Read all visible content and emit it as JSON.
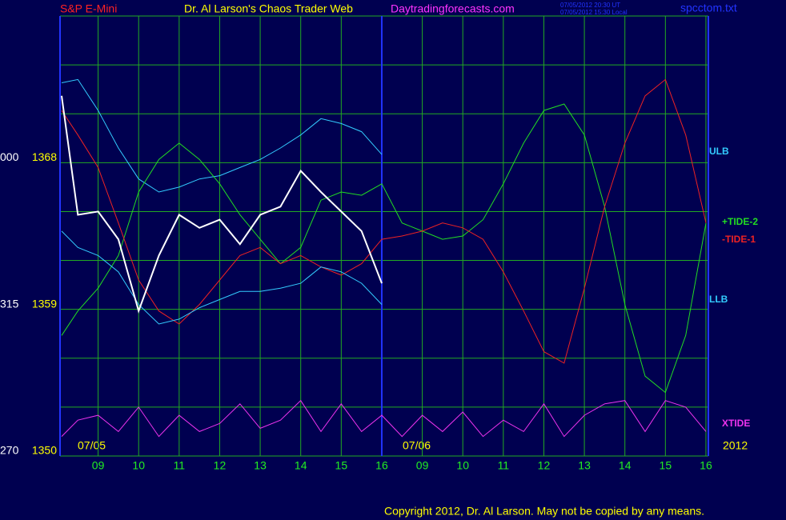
{
  "chart_data": {
    "type": "line",
    "title": "Dr. Al Larson's Chaos Trader Web",
    "symbol": "S&P E-Mini",
    "site": "Daytradingforecasts.com",
    "timestamps": [
      "07/05/2012 20:30 UT",
      "07/05/2012 15:30 Local"
    ],
    "file": "spcctom.txt",
    "date_labels": [
      "07/05",
      "07/06",
      "2012"
    ],
    "copyright": "Copyright 2012, Dr. Al Larson. May not be copied by any means.",
    "angle_labels": [
      {
        "value": 1350,
        "label": "270"
      },
      {
        "value": 1359,
        "label": "315"
      },
      {
        "value": 1368,
        "label": "000"
      }
    ],
    "xlim": [
      8.06,
      24.06
    ],
    "xticks": [
      {
        "value": 9,
        "label": "09"
      },
      10,
      11,
      12,
      13,
      14,
      15,
      16,
      {
        "value": 17,
        "label": "09"
      },
      {
        "value": 18,
        "label": "10"
      },
      {
        "value": 19,
        "label": "11"
      },
      {
        "value": 20,
        "label": "12"
      },
      {
        "value": 21,
        "label": "13"
      },
      {
        "value": 22,
        "label": "14"
      },
      {
        "value": 23,
        "label": "15"
      },
      {
        "value": 24,
        "label": "16"
      }
    ],
    "ylim": [
      1350,
      1377
    ],
    "yticks": [
      1350,
      1359,
      1368
    ],
    "ygrid": [
      1350,
      1353,
      1356,
      1359,
      1362,
      1365,
      1368,
      1371,
      1374,
      1377
    ],
    "day_separator": 16,
    "x": [
      8.1,
      8.5,
      9,
      9.5,
      10,
      10.5,
      11,
      11.5,
      12,
      12.5,
      13,
      13.5,
      14,
      14.5,
      15,
      15.5,
      16,
      16.5,
      17,
      17.5,
      18,
      18.5,
      19,
      19.5,
      20,
      20.5,
      21,
      21.5,
      22,
      22.5,
      23,
      23.5,
      24
    ],
    "series": [
      {
        "name": "ULB",
        "color": "#33ccff",
        "values": [
          1372.9,
          1373.1,
          1371.2,
          1368.9,
          1367.0,
          1366.2,
          1366.5,
          1367.0,
          1367.2,
          1367.7,
          1368.2,
          1368.9,
          1369.7,
          1370.7,
          1370.4,
          1369.9,
          1368.5,
          null,
          null,
          null,
          null,
          null,
          null,
          null,
          null,
          null,
          null,
          null,
          null,
          null,
          null,
          null,
          null
        ]
      },
      {
        "name": "+TIDE-2",
        "color": "#22dd22",
        "values": [
          1357.4,
          1358.9,
          1360.3,
          1362.3,
          1366.2,
          1368.2,
          1369.2,
          1368.2,
          1366.7,
          1364.8,
          1363.3,
          1361.8,
          1362.8,
          1365.7,
          1366.2,
          1366.0,
          1366.7,
          1364.3,
          1363.8,
          1363.3,
          1363.5,
          1364.5,
          1366.7,
          1369.2,
          1371.2,
          1371.6,
          1369.7,
          1365.3,
          1359.3,
          1354.9,
          1353.9,
          1357.4,
          1364.3
        ]
      },
      {
        "name": "-TIDE-1",
        "color": "#ee2222",
        "values": [
          1371.2,
          1369.7,
          1367.7,
          1364.3,
          1360.8,
          1358.9,
          1358.1,
          1359.3,
          1360.8,
          1362.3,
          1362.8,
          1361.8,
          1362.3,
          1361.6,
          1361.1,
          1361.8,
          1363.3,
          1363.5,
          1363.8,
          1364.3,
          1364.0,
          1363.3,
          1361.3,
          1358.9,
          1356.4,
          1355.7,
          1360.3,
          1365.3,
          1369.2,
          1372.1,
          1373.1,
          1369.7,
          1364.3
        ]
      },
      {
        "name": "LLB",
        "color": "#33ccff",
        "values": [
          1363.8,
          1362.8,
          1362.3,
          1361.3,
          1359.3,
          1358.1,
          1358.4,
          1359.1,
          1359.6,
          1360.1,
          1360.1,
          1360.3,
          1360.6,
          1361.6,
          1361.3,
          1360.6,
          1359.3,
          null,
          null,
          null,
          null,
          null,
          null,
          null,
          null,
          null,
          null,
          null,
          null,
          null,
          null,
          null,
          null
        ]
      },
      {
        "name": "XTIDE",
        "color": "#ee33ee",
        "values": [
          1351.2,
          1352.2,
          1352.5,
          1351.5,
          1353.0,
          1351.2,
          1352.5,
          1351.5,
          1352.0,
          1353.2,
          1351.7,
          1352.2,
          1353.4,
          1351.5,
          1353.2,
          1351.5,
          1352.5,
          1351.2,
          1352.5,
          1351.5,
          1352.7,
          1351.2,
          1352.2,
          1351.5,
          1353.2,
          1351.2,
          1352.5,
          1353.2,
          1353.4,
          1351.5,
          1353.4,
          1353.0,
          1351.5
        ]
      }
    ],
    "price": {
      "color": "#ffffff",
      "values": [
        1372.1,
        1364.8,
        1365.0,
        1363.3,
        1358.9,
        1362.3,
        1364.8,
        1364.0,
        1364.5,
        1363.0,
        1364.8,
        1365.3,
        1367.5,
        1366.2,
        1365.0,
        1363.8,
        1360.6,
        null,
        null,
        null,
        null,
        null,
        null,
        null,
        null,
        null,
        null,
        null,
        null,
        null,
        null,
        null,
        null
      ]
    }
  }
}
